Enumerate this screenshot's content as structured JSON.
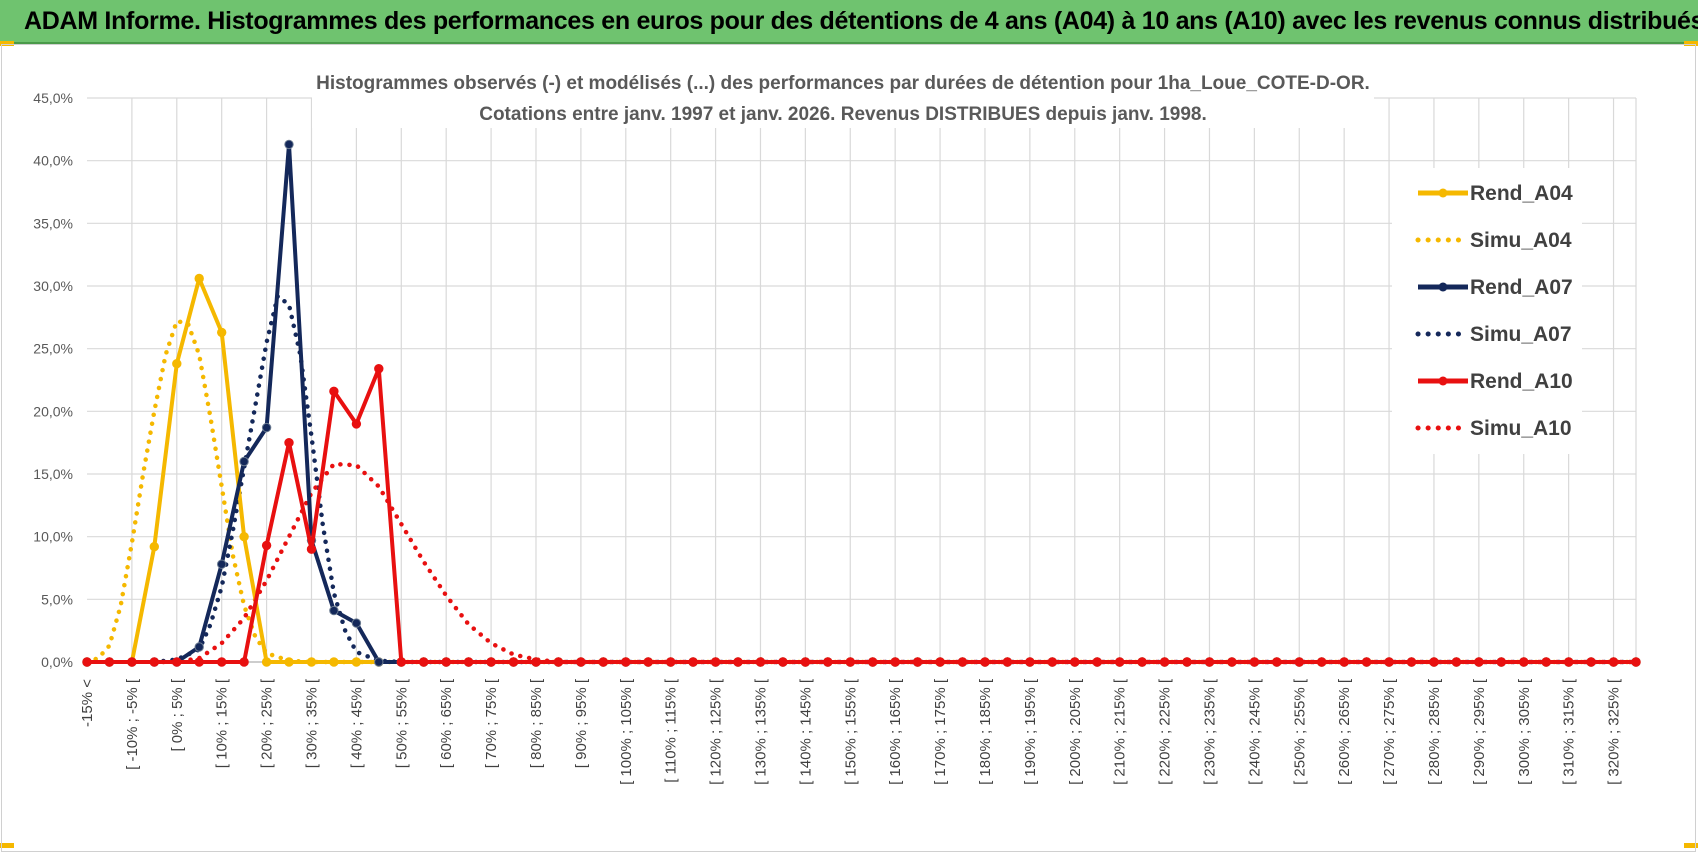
{
  "header": {
    "banner_title": "ADAM Informe. Histogrammes des performances en euros pour des détentions de 4 ans (A04) à 10 ans (A10) avec les revenus connus distribués"
  },
  "colors": {
    "banner_bg": "#6fc36f",
    "A04": "#f5b800",
    "A07": "#14285a",
    "A10": "#e81010",
    "grid": "#d9d9d9",
    "axis_text": "#595959"
  },
  "chart_data": {
    "type": "line",
    "title_line1": "Histogrammes observés (-) et modélisés (...) des performances par durées de détention pour 1ha_Loue_COTE-D-OR.",
    "title_line2": "Cotations entre janv. 1997 et janv. 2026. Revenus DISTRIBUES depuis janv. 1998.",
    "xlabel": "",
    "ylabel": "",
    "ylim": [
      0,
      45
    ],
    "yticks": [
      "0,0%",
      "5,0%",
      "10,0%",
      "15,0%",
      "20,0%",
      "25,0%",
      "30,0%",
      "35,0%",
      "40,0%",
      "45,0%"
    ],
    "grid": true,
    "legend_position": "right",
    "x_tick_labels": [
      "-15% <",
      "[ -10% ; -5% [",
      "[ 0% ; 5% [",
      "[ 10% ; 15% [",
      "[ 20% ; 25% [",
      "[ 30% ; 35% [",
      "[ 40% ; 45% [",
      "[ 50% ; 55% [",
      "[ 60% ; 65% [",
      "[ 70% ; 75% [",
      "[ 80% ; 85% [",
      "[ 90% ; 95% [",
      "[ 100% ; 105% [",
      "[ 110% ; 115% [",
      "[ 120% ; 125% [",
      "[ 130% ; 135% [",
      "[ 140% ; 145% [",
      "[ 150% ; 155% [",
      "[ 160% ; 165% [",
      "[ 170% ; 175% [",
      "[ 180% ; 185% [",
      "[ 190% ; 195% [",
      "[ 200% ; 205% [",
      "[ 210% ; 215% [",
      "[ 220% ; 225% [",
      "[ 230% ; 235% [",
      "[ 240% ; 245% [",
      "[ 250% ; 255% [",
      "[ 260% ; 265% [",
      "[ 270% ; 275% [",
      "[ 280% ; 285% [",
      "[ 290% ; 295% [",
      "[ 300% ; 305% [",
      "[ 310% ; 315% [",
      "[ 320% ; 325% ["
    ],
    "x_start": -15,
    "x_step": 5,
    "x_count": 70,
    "series": [
      {
        "name": "Rend_A04",
        "style": "solid",
        "color": "#f5b800",
        "markers": true,
        "points": [
          [
            -15,
            0
          ],
          [
            -10,
            0
          ],
          [
            -5,
            0
          ],
          [
            0,
            9.2
          ],
          [
            5,
            23.8
          ],
          [
            10,
            30.6
          ],
          [
            15,
            26.3
          ],
          [
            20,
            10.0
          ],
          [
            25,
            0
          ],
          [
            30,
            0
          ],
          [
            35,
            0
          ],
          [
            40,
            0
          ],
          [
            45,
            0
          ]
        ]
      },
      {
        "name": "Simu_A04",
        "style": "dotted",
        "color": "#f5b800",
        "markers": false,
        "points": [
          [
            -15,
            0
          ],
          [
            -12.5,
            0.3
          ],
          [
            -10,
            1.3
          ],
          [
            -7.5,
            4.5
          ],
          [
            -5,
            9.5
          ],
          [
            -2.5,
            15.0
          ],
          [
            0,
            20.0
          ],
          [
            2.5,
            24.5
          ],
          [
            5,
            27.2
          ],
          [
            7.5,
            27.0
          ],
          [
            10,
            24.5
          ],
          [
            12.5,
            19.5
          ],
          [
            15,
            14.0
          ],
          [
            17.5,
            8.5
          ],
          [
            20,
            4.5
          ],
          [
            22.5,
            2.0
          ],
          [
            25,
            0.7
          ],
          [
            30,
            0.1
          ],
          [
            35,
            0
          ],
          [
            50,
            0
          ]
        ]
      },
      {
        "name": "Rend_A07",
        "style": "solid",
        "color": "#14285a",
        "markers": true,
        "points": [
          [
            -15,
            0
          ],
          [
            -10,
            0
          ],
          [
            -5,
            0
          ],
          [
            0,
            0
          ],
          [
            5,
            0
          ],
          [
            10,
            1.2
          ],
          [
            15,
            7.8
          ],
          [
            20,
            16.0
          ],
          [
            25,
            18.7
          ],
          [
            30,
            41.3
          ],
          [
            35,
            9.7
          ],
          [
            40,
            4.1
          ],
          [
            45,
            3.1
          ],
          [
            50,
            0
          ],
          [
            55,
            0
          ]
        ]
      },
      {
        "name": "Simu_A07",
        "style": "dotted",
        "color": "#14285a",
        "markers": false,
        "points": [
          [
            0,
            0
          ],
          [
            5,
            0.2
          ],
          [
            10,
            1.0
          ],
          [
            12.5,
            3.0
          ],
          [
            15,
            6.0
          ],
          [
            17.5,
            10.5
          ],
          [
            20,
            15.5
          ],
          [
            22.5,
            20.5
          ],
          [
            25,
            25.5
          ],
          [
            27.5,
            29.2
          ],
          [
            30,
            28.5
          ],
          [
            32.5,
            24.5
          ],
          [
            35,
            18.0
          ],
          [
            37.5,
            11.0
          ],
          [
            40,
            5.5
          ],
          [
            42.5,
            2.5
          ],
          [
            45,
            0.8
          ],
          [
            50,
            0.1
          ],
          [
            55,
            0
          ]
        ]
      },
      {
        "name": "Rend_A10",
        "style": "solid",
        "color": "#e81010",
        "markers": true,
        "points": [
          [
            -15,
            0
          ],
          [
            -10,
            0
          ],
          [
            -5,
            0
          ],
          [
            0,
            0
          ],
          [
            5,
            0
          ],
          [
            10,
            0
          ],
          [
            15,
            0
          ],
          [
            20,
            0
          ],
          [
            25,
            9.3
          ],
          [
            30,
            17.5
          ],
          [
            35,
            9.0
          ],
          [
            40,
            21.6
          ],
          [
            45,
            19.0
          ],
          [
            50,
            23.4
          ],
          [
            55,
            0
          ]
        ]
      },
      {
        "name": "Simu_A10",
        "style": "dotted",
        "color": "#e81010",
        "markers": false,
        "points": [
          [
            0,
            0
          ],
          [
            5,
            0
          ],
          [
            10,
            0.3
          ],
          [
            15,
            1.5
          ],
          [
            20,
            3.5
          ],
          [
            25,
            6.5
          ],
          [
            30,
            10.0
          ],
          [
            35,
            13.5
          ],
          [
            40,
            15.8
          ],
          [
            45,
            15.7
          ],
          [
            50,
            14.0
          ],
          [
            55,
            11.0
          ],
          [
            60,
            8.0
          ],
          [
            65,
            5.3
          ],
          [
            70,
            3.0
          ],
          [
            75,
            1.5
          ],
          [
            80,
            0.6
          ],
          [
            85,
            0.2
          ],
          [
            90,
            0
          ],
          [
            100,
            0
          ]
        ]
      }
    ]
  }
}
